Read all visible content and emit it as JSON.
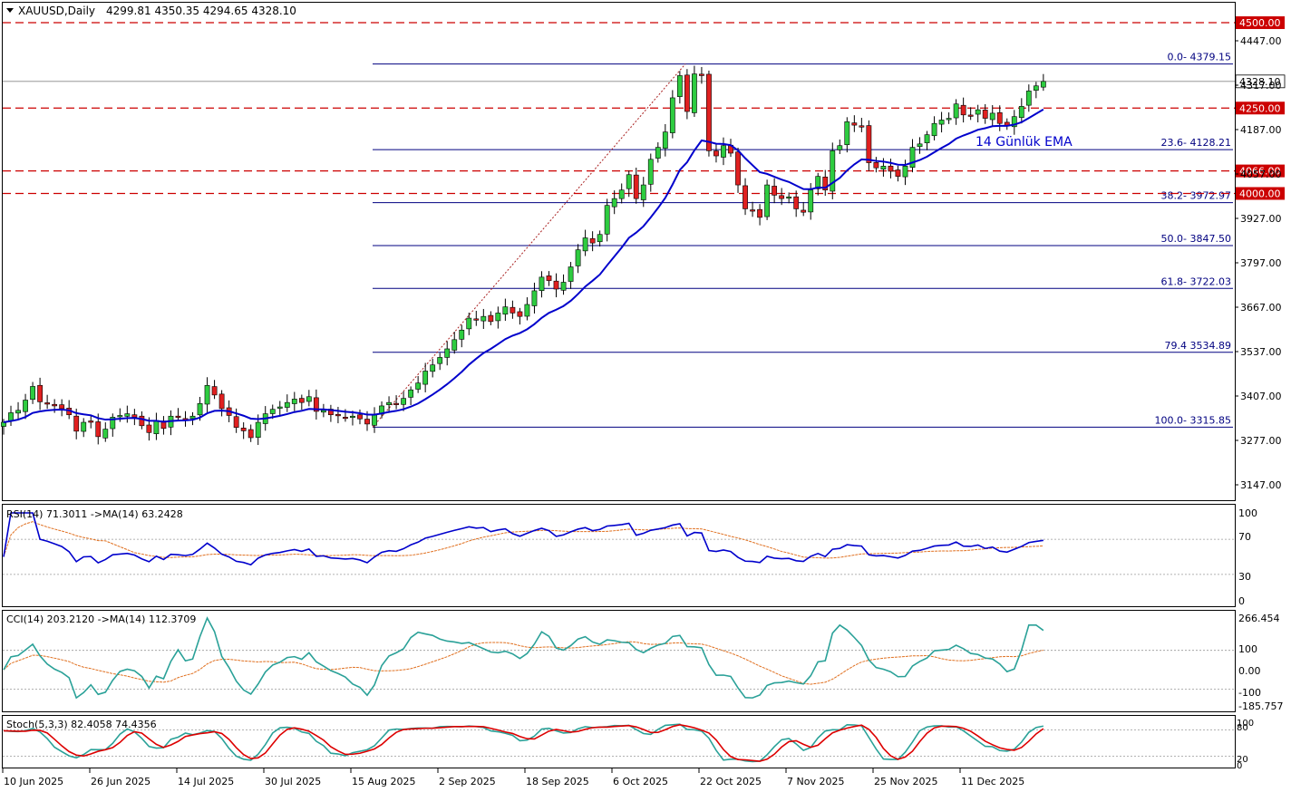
{
  "header": {
    "symbol": "XAUUSD,Daily",
    "ohlc": "4299.81 4350.35 4294.65 4328.10"
  },
  "colors": {
    "bull": "#2ecc40",
    "bear": "#e02020",
    "ema": "#0000cc",
    "level_line": "#cc0000",
    "fib_line": "#000080",
    "rsi": "#0000cc",
    "cci": "#2aa198",
    "stoch_main": "#2aa198",
    "stoch_signal": "#dd0000",
    "ma": "#e07020"
  },
  "chart_data": [
    {
      "type": "candlestick",
      "panel": "price",
      "ylim": [
        3117,
        4505
      ],
      "y_ticks": [
        "4447.00",
        "4317.00",
        "4187.00",
        "4057.00",
        "3927.00",
        "3797.00",
        "3667.00",
        "3537.00",
        "3407.00",
        "3277.00",
        "3147.00"
      ],
      "x_ticks": [
        "10 Jun 2025",
        "26 Jun 2025",
        "14 Jul 2025",
        "30 Jul 2025",
        "15 Aug 2025",
        "2 Sep 2025",
        "18 Sep 2025",
        "6 Oct 2025",
        "22 Oct 2025",
        "7 Nov 2025",
        "25 Nov 2025",
        "11 Dec 2025"
      ],
      "close": [
        3330,
        3358,
        3365,
        3395,
        3435,
        3390,
        3385,
        3378,
        3370,
        3352,
        3304,
        3330,
        3332,
        3288,
        3310,
        3345,
        3350,
        3355,
        3345,
        3320,
        3300,
        3335,
        3312,
        3348,
        3345,
        3340,
        3348,
        3385,
        3438,
        3410,
        3370,
        3350,
        3315,
        3305,
        3285,
        3330,
        3355,
        3368,
        3375,
        3388,
        3398,
        3388,
        3405,
        3362,
        3365,
        3352,
        3349,
        3345,
        3348,
        3340,
        3325,
        3352,
        3378,
        3388,
        3385,
        3400,
        3425,
        3445,
        3480,
        3498,
        3520,
        3545,
        3572,
        3600,
        3635,
        3630,
        3640,
        3625,
        3650,
        3668,
        3650,
        3640,
        3675,
        3715,
        3755,
        3745,
        3720,
        3740,
        3785,
        3835,
        3870,
        3855,
        3880,
        3965,
        3985,
        4010,
        4055,
        3985,
        4025,
        4100,
        4135,
        4180,
        4280,
        4345,
        4240,
        4350,
        4345,
        4125,
        4110,
        4140,
        4118,
        4025,
        3955,
        3950,
        3930,
        4025,
        3995,
        3985,
        3990,
        3955,
        3945,
        4010,
        4050,
        4010,
        4125,
        4140,
        4210,
        4200,
        4195,
        4090,
        4075,
        4080,
        4065,
        4050,
        4080,
        4135,
        4145,
        4172,
        4205,
        4215,
        4220,
        4262,
        4230,
        4228,
        4245,
        4220,
        4235,
        4205,
        4198,
        4225,
        4255,
        4300,
        4315,
        4328.1
      ],
      "emaPeriod": 14,
      "ema_label": "14 Günlük EMA",
      "levels": [
        {
          "value": 4500,
          "label": "4500.00"
        },
        {
          "value": 4250,
          "label": "4250.00"
        },
        {
          "value": 4066,
          "label": "4066.00"
        },
        {
          "value": 4000,
          "label": "4000.00"
        }
      ],
      "fib_levels": [
        {
          "value": 4379.15,
          "label": "0.0- 4379.15"
        },
        {
          "value": 4128.21,
          "label": "23.6- 4128.21"
        },
        {
          "value": 3972.97,
          "label": "38.2- 3972.97"
        },
        {
          "value": 3847.5,
          "label": "50.0- 3847.50"
        },
        {
          "value": 3722.03,
          "label": "61.8- 3722.03"
        },
        {
          "value": 3534.89,
          "label": "79.4 3534.89"
        },
        {
          "value": 3315.85,
          "label": "100.0- 3315.85"
        }
      ],
      "current_price": {
        "value": 4328.1,
        "label": "4328.10"
      }
    },
    {
      "type": "line",
      "panel": "rsi",
      "title": "RSI(14) 71.3011   ->MA(14) 63.2428",
      "ylim": [
        0,
        100
      ],
      "y_ticks": [
        "100",
        "70",
        "30",
        "0"
      ],
      "levels": [
        70,
        30
      ],
      "ma_period": 14
    },
    {
      "type": "line",
      "panel": "cci",
      "title": "CCI(14) 203.2120   ->MA(14) 112.3709",
      "ylim": [
        -185.757,
        266.454
      ],
      "y_ticks": [
        "266.454",
        "100",
        "0.00",
        "-100",
        "-185.757"
      ],
      "levels": [
        100,
        -100
      ],
      "ma_period": 14
    },
    {
      "type": "line",
      "panel": "stoch",
      "title": "Stoch(5,3,3) 82.4058 74.4356",
      "ylim": [
        0,
        100
      ],
      "y_ticks": [
        "100",
        "80",
        "20",
        "0"
      ],
      "levels": [
        80,
        20
      ]
    }
  ]
}
